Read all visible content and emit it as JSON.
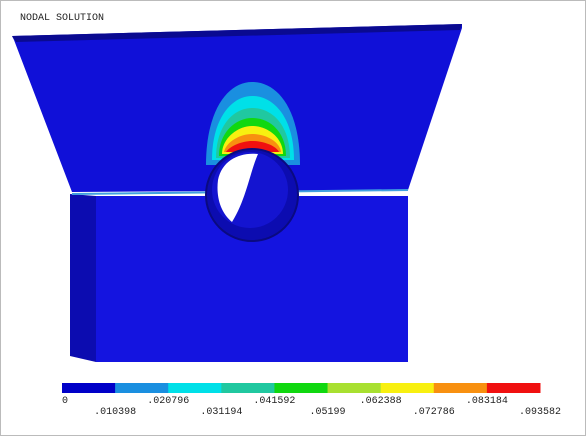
{
  "header": {
    "title": "NODAL SOLUTION"
  },
  "legend": {
    "labels": [
      "0",
      ".010398",
      ".020796",
      ".031194",
      ".041592",
      ".05199",
      ".062388",
      ".072786",
      ".083184",
      ".093582"
    ],
    "colors": [
      "#0000c8",
      "#1a8fe0",
      "#00e0e8",
      "#20c8a0",
      "#10d810",
      "#a8e030",
      "#f8f010",
      "#f89010",
      "#f01010"
    ]
  }
}
